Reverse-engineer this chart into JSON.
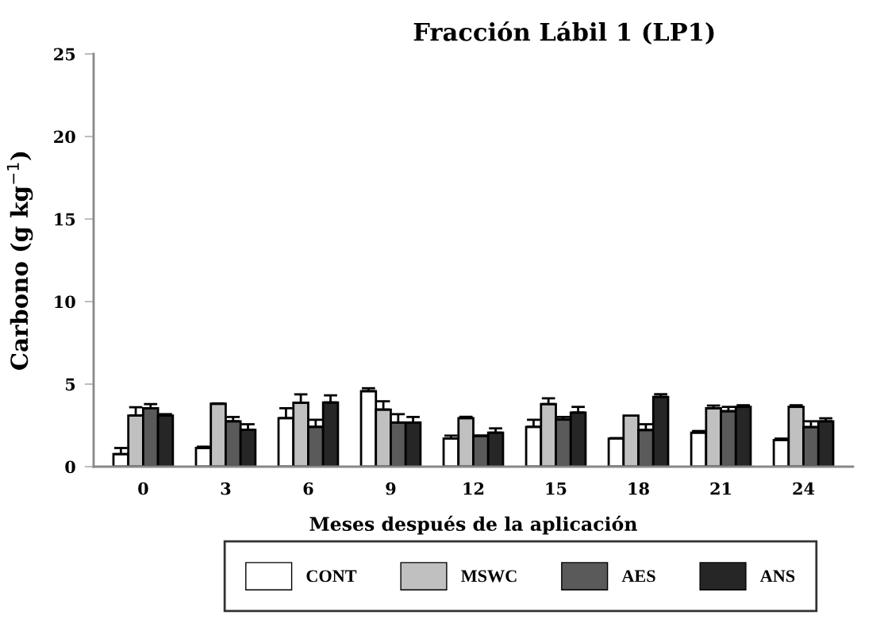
{
  "chart_data": {
    "type": "bar",
    "title": "Fracción Lábil 1 (LP1)",
    "xlabel": "Meses después de la aplicación",
    "ylabel": "Carbono (g kg$^{−1}$)",
    "categories": [
      "0",
      "3",
      "6",
      "9",
      "12",
      "15",
      "18",
      "21",
      "24"
    ],
    "series": [
      {
        "name": "CONT",
        "color": "#ffffff",
        "values": [
          0.76,
          1.13,
          2.94,
          4.57,
          1.7,
          2.41,
          1.7,
          2.06,
          1.62
        ],
        "errors": [
          0.37,
          0.08,
          0.6,
          0.18,
          0.18,
          0.43,
          0.03,
          0.1,
          0.08
        ]
      },
      {
        "name": "MSWC",
        "color": "#c0c0c0",
        "values": [
          3.1,
          3.81,
          3.87,
          3.46,
          2.94,
          3.79,
          3.1,
          3.54,
          3.62
        ],
        "errors": [
          0.5,
          0.02,
          0.51,
          0.5,
          0.08,
          0.35,
          null,
          0.16,
          0.1
        ]
      },
      {
        "name": "AES",
        "color": "#5a5a5a",
        "values": [
          3.54,
          2.75,
          2.41,
          2.67,
          1.86,
          2.85,
          2.22,
          3.36,
          2.4
        ],
        "errors": [
          0.25,
          0.26,
          0.43,
          0.51,
          0.03,
          0.16,
          0.35,
          0.26,
          0.35
        ]
      },
      {
        "name": "ANS",
        "color": "#262626",
        "values": [
          3.1,
          2.23,
          3.89,
          2.67,
          2.06,
          3.28,
          4.23,
          3.62,
          2.75
        ],
        "errors": [
          0.08,
          0.34,
          0.43,
          0.34,
          0.26,
          0.34,
          0.16,
          0.1,
          0.18
        ]
      }
    ],
    "ylim": [
      0,
      25
    ],
    "yticks": [
      0,
      5,
      10,
      15,
      20,
      25
    ],
    "grid": false,
    "legend": "bottom"
  }
}
